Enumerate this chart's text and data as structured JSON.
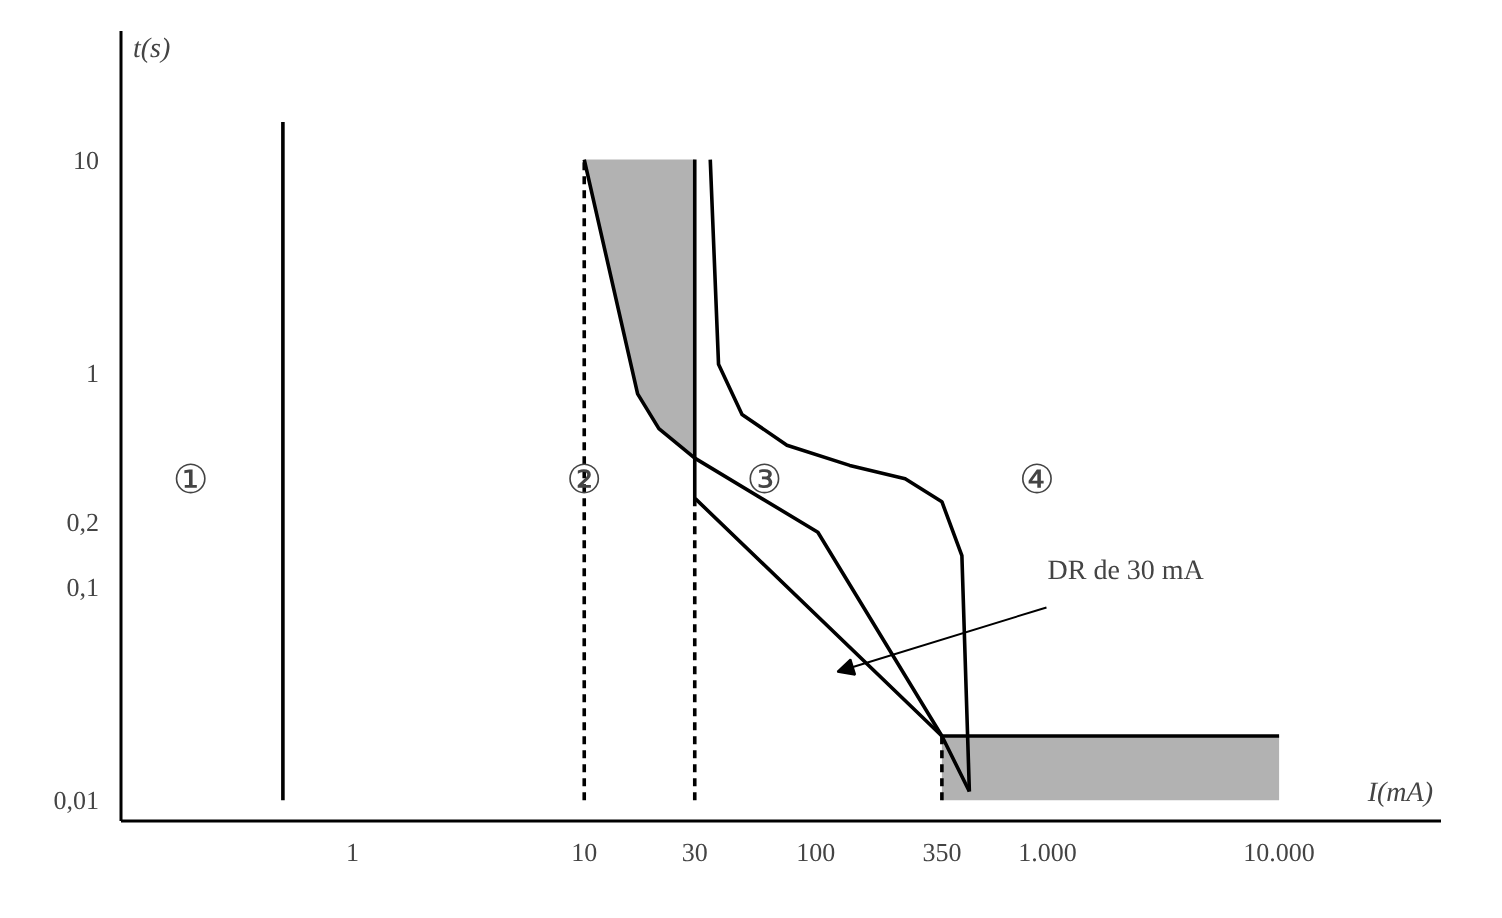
{
  "chart_data": {
    "type": "line",
    "xlabel": "I(mA)",
    "ylabel": "t(s)",
    "log": "xy",
    "grid": false,
    "xlim": [
      0.1,
      50000
    ],
    "ylim": [
      0.008,
      40
    ],
    "xticks": [
      1,
      10,
      30,
      100,
      350,
      {
        "value": 1000,
        "label": "1.000"
      },
      {
        "value": 10000,
        "label": "10.000"
      }
    ],
    "yticks": [
      {
        "value": 0.01,
        "label": "0,01"
      },
      {
        "value": 0.1,
        "label": "0,1"
      },
      {
        "value": 0.2,
        "label": "0,2"
      },
      1,
      10
    ],
    "series": [
      {
        "color": "#000000",
        "x": [
          0.5,
          0.5
        ],
        "values": [
          0.01,
          15
        ]
      },
      {
        "color": "#000000",
        "line_style": "dashed",
        "x": [
          10,
          10
        ],
        "values": [
          0.01,
          10
        ]
      },
      {
        "color": "#000000",
        "line_style": "dashed",
        "x": [
          30,
          30
        ],
        "values": [
          0.01,
          0.26
        ]
      },
      {
        "color": "#000000",
        "line_style": "dashed",
        "x": [
          350,
          350
        ],
        "values": [
          0.01,
          0.02
        ]
      },
      {
        "color": "#000000",
        "x": [
          10,
          17,
          21,
          30,
          102,
          350
        ],
        "values": [
          10,
          0.8,
          0.55,
          0.4,
          0.18,
          0.02
        ],
        "lower": [
          10,
          0.8,
          0.55,
          0.4,
          null,
          null
        ],
        "upper": [
          10,
          10,
          10,
          10,
          null,
          null
        ]
      },
      {
        "color": "#000000",
        "x": [
          30,
          30,
          350,
          460
        ],
        "values": [
          10,
          0.26,
          0.02,
          0.011
        ]
      },
      {
        "color": "#000000",
        "x": [
          35,
          38,
          48,
          75,
          140,
          243,
          350,
          427,
          460
        ],
        "values": [
          10,
          1.1,
          0.64,
          0.46,
          0.37,
          0.32,
          0.25,
          0.14,
          0.011
        ]
      },
      {
        "color": "#000000",
        "x": [
          350,
          10000
        ],
        "values": [
          0.02,
          0.02
        ],
        "lower": [
          0.01,
          0.01
        ],
        "upper": [
          0.02,
          0.02
        ]
      }
    ],
    "annotations": [
      "①",
      "②",
      "③",
      "④",
      "DR de 30 mA"
    ]
  }
}
